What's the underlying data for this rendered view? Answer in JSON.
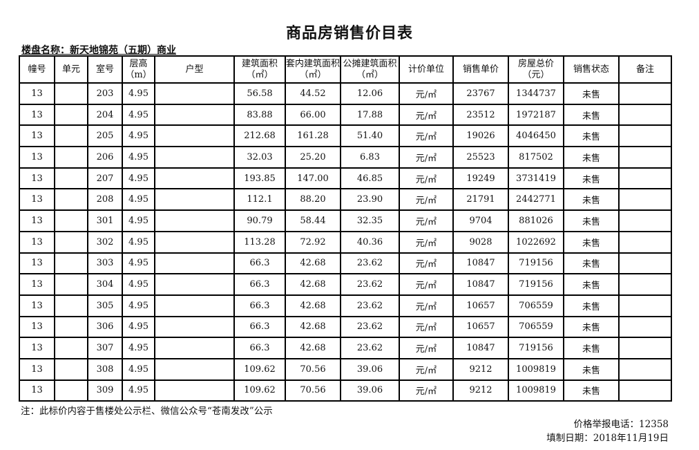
{
  "title": "商品房销售价目表",
  "project_label": "楼盘名称：新天地锦苑（五期）商业",
  "columns": [
    "幢号",
    "单元",
    "室号",
    "层高（m）",
    "户型",
    "建筑面积（㎡）",
    "套内建筑面积（㎡）",
    "公摊建筑面积（㎡）",
    "计价单位",
    "销售单价",
    "房屋总价（元）",
    "销售状态",
    "备注"
  ],
  "rows": [
    [
      "13",
      "",
      "203",
      "4.95",
      "",
      "56.58",
      "44.52",
      "12.06",
      "元/㎡",
      "23767",
      "1344737",
      "未售",
      ""
    ],
    [
      "13",
      "",
      "204",
      "4.95",
      "",
      "83.88",
      "66.00",
      "17.88",
      "元/㎡",
      "23512",
      "1972187",
      "未售",
      ""
    ],
    [
      "13",
      "",
      "205",
      "4.95",
      "",
      "212.68",
      "161.28",
      "51.40",
      "元/㎡",
      "19026",
      "4046450",
      "未售",
      ""
    ],
    [
      "13",
      "",
      "206",
      "4.95",
      "",
      "32.03",
      "25.20",
      "6.83",
      "元/㎡",
      "25523",
      "817502",
      "未售",
      ""
    ],
    [
      "13",
      "",
      "207",
      "4.95",
      "",
      "193.85",
      "147.00",
      "46.85",
      "元/㎡",
      "19249",
      "3731419",
      "未售",
      ""
    ],
    [
      "13",
      "",
      "208",
      "4.95",
      "",
      "112.1",
      "88.20",
      "23.90",
      "元/㎡",
      "21791",
      "2442771",
      "未售",
      ""
    ],
    [
      "13",
      "",
      "301",
      "4.95",
      "",
      "90.79",
      "58.44",
      "32.35",
      "元/㎡",
      "9704",
      "881026",
      "未售",
      ""
    ],
    [
      "13",
      "",
      "302",
      "4.95",
      "",
      "113.28",
      "72.92",
      "40.36",
      "元/㎡",
      "9028",
      "1022692",
      "未售",
      ""
    ],
    [
      "13",
      "",
      "303",
      "4.95",
      "",
      "66.3",
      "42.68",
      "23.62",
      "元/㎡",
      "10847",
      "719156",
      "未售",
      ""
    ],
    [
      "13",
      "",
      "304",
      "4.95",
      "",
      "66.3",
      "42.68",
      "23.62",
      "元/㎡",
      "10847",
      "719156",
      "未售",
      ""
    ],
    [
      "13",
      "",
      "305",
      "4.95",
      "",
      "66.3",
      "42.68",
      "23.62",
      "元/㎡",
      "10657",
      "706559",
      "未售",
      ""
    ],
    [
      "13",
      "",
      "306",
      "4.95",
      "",
      "66.3",
      "42.68",
      "23.62",
      "元/㎡",
      "10657",
      "706559",
      "未售",
      ""
    ],
    [
      "13",
      "",
      "307",
      "4.95",
      "",
      "66.3",
      "42.68",
      "23.62",
      "元/㎡",
      "10847",
      "719156",
      "未售",
      ""
    ],
    [
      "13",
      "",
      "308",
      "4.95",
      "",
      "109.62",
      "70.56",
      "39.06",
      "元/㎡",
      "9212",
      "1009819",
      "未售",
      ""
    ],
    [
      "13",
      "",
      "309",
      "4.95",
      "",
      "109.62",
      "70.56",
      "39.06",
      "元/㎡",
      "9212",
      "1009819",
      "未售",
      ""
    ]
  ],
  "footer": {
    "note": "注：此标价内容于售楼处公示栏、微信公众号“苍南发改”公示",
    "phone": "价格举报电话：12358",
    "date": "填制日期：2018年11月19日"
  }
}
